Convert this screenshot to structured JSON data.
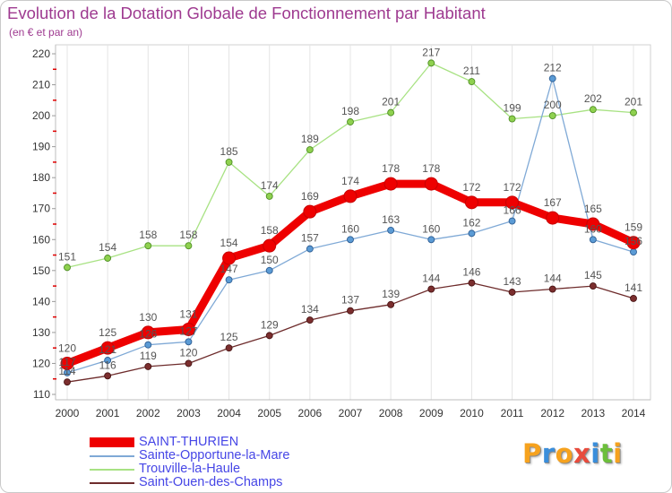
{
  "chart_data": {
    "type": "line",
    "title": "Evolution de la Dotation Globale de Fonctionnement par Habitant",
    "subtitle": "(en € et par an)",
    "xlabel": "",
    "ylabel": "",
    "categories": [
      "2000",
      "2001",
      "2002",
      "2003",
      "2004",
      "2005",
      "2006",
      "2007",
      "2008",
      "2009",
      "2010",
      "2011",
      "2012",
      "2013",
      "2014"
    ],
    "ylim": [
      110,
      220
    ],
    "yticks": [
      110,
      120,
      130,
      140,
      150,
      160,
      170,
      180,
      190,
      200,
      210,
      220
    ],
    "grid": true,
    "legend": "bottom-left",
    "series": [
      {
        "name": "SAINT-THURIEN",
        "emphasis": true,
        "color": "#EE0000",
        "marker": "#EE0000",
        "marker_edge": "#C80000",
        "values": [
          120,
          125,
          130,
          131,
          154,
          158,
          169,
          174,
          178,
          178,
          172,
          172,
          167,
          165,
          159
        ]
      },
      {
        "name": "Sainte-Opportune-la-Mare",
        "emphasis": false,
        "color": "#7FA9D6",
        "marker": "#5B9BD5",
        "marker_edge": "#2F5F95",
        "values": [
          117,
          121,
          126,
          127,
          147,
          150,
          157,
          160,
          163,
          160,
          162,
          166,
          212,
          160,
          156
        ]
      },
      {
        "name": "Trouville-la-Haule",
        "emphasis": false,
        "color": "#A8E283",
        "marker": "#8FD14F",
        "marker_edge": "#4F8F25",
        "values": [
          151,
          154,
          158,
          158,
          185,
          174,
          189,
          198,
          201,
          217,
          211,
          199,
          200,
          202,
          201
        ]
      },
      {
        "name": "Saint-Ouen-des-Champs",
        "emphasis": false,
        "color": "#6E2C2C",
        "marker": "#7B2E2E",
        "marker_edge": "#4A1515",
        "values": [
          114,
          116,
          119,
          120,
          125,
          129,
          134,
          137,
          139,
          144,
          146,
          143,
          144,
          145,
          141
        ]
      }
    ]
  },
  "logo": {
    "text": "Proxiti",
    "colors": [
      "#F6A21E",
      "#3A8EDB",
      "#F6A21E",
      "#E84B3C",
      "#3A8EDB",
      "#6CBF3A",
      "#F6A21E"
    ]
  }
}
